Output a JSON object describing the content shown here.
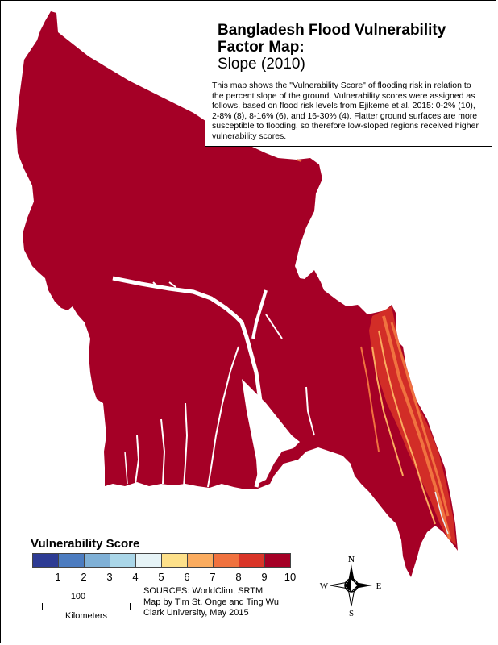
{
  "title": "Bangladesh Flood Vulnerability Factor Map:",
  "subtitle": "Slope (2010)",
  "description": "This map shows the \"Vulnerability Score\" of flooding risk in relation to the percent slope of the ground. Vulnerability scores were assigned as follows, based on flood risk levels from Ejikeme et al. 2015: 0-2% (10), 2-8% (8), 8-16% (6), and 16-30% (4). Flatter ground surfaces are more susceptible to flooding, so therefore low-sloped regions received higher vulnerability scores.",
  "legend": {
    "title": "Vulnerability Score",
    "classes": [
      {
        "label": "1",
        "color": "#2d3b94"
      },
      {
        "label": "2",
        "color": "#4c7cc0"
      },
      {
        "label": "3",
        "color": "#7fb0d6"
      },
      {
        "label": "4",
        "color": "#aad6e8"
      },
      {
        "label": "5",
        "color": "#e6f3f6"
      },
      {
        "label": "6",
        "color": "#fde08a"
      },
      {
        "label": "7",
        "color": "#fbac5f"
      },
      {
        "label": "8",
        "color": "#f0723f"
      },
      {
        "label": "9",
        "color": "#d93528"
      },
      {
        "label": "10",
        "color": "#a50026"
      }
    ]
  },
  "scale_bar": {
    "value": "100",
    "unit": "Kilometers"
  },
  "credits": [
    "SOURCES: WorldClim, SRTM",
    "Map by Tim St. Onge and Ting Wu",
    "Clark University, May 2015"
  ],
  "compass": {
    "n": "N",
    "s": "S",
    "e": "E",
    "w": "W"
  },
  "colors": {
    "land": "#a50026",
    "hills": "#f0723f",
    "ridge": "#fbac5f"
  }
}
